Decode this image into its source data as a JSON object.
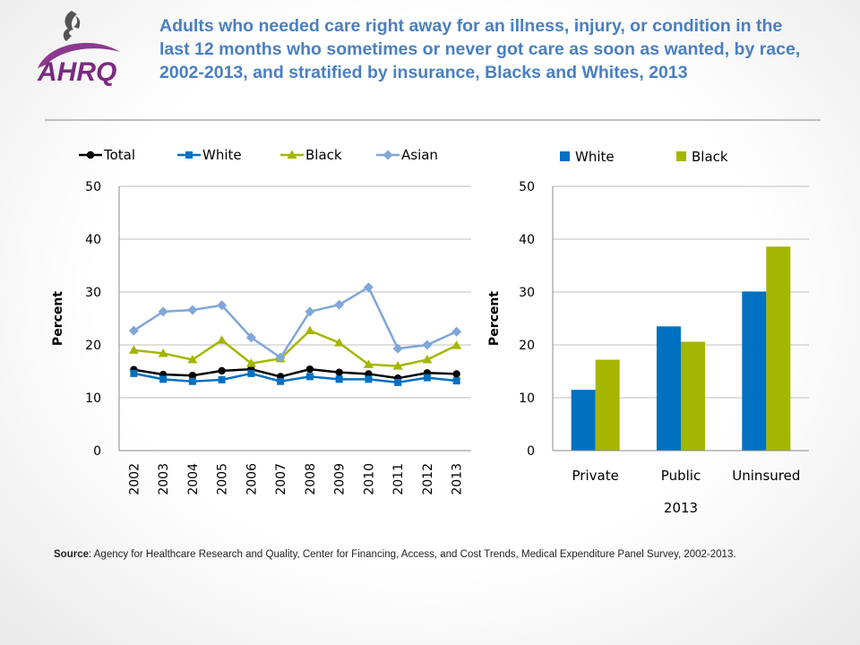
{
  "header": {
    "title": "Adults who needed care right away for an illness, injury, or condition in the last 12 months who sometimes or never got care as soon as wanted, by race, 2002-2013, and stratified by insurance, Blacks and Whites, 2013",
    "logo_text": "AHRQ",
    "logo_icon": "hhs-eagle-icon"
  },
  "footer": {
    "source_label": "Source",
    "source_text": ": Agency for Healthcare Research and Quality, Center for Financing, Access, and Cost Trends, Medical Expenditure Panel Survey, 2002-2013."
  },
  "colors": {
    "title": "#4a7fc1",
    "total": "#000000",
    "white": "#0070c0",
    "black": "#a5b600",
    "asian": "#7fa7d9",
    "grid": "#bfbfbf"
  },
  "chart_data": [
    {
      "type": "line",
      "ylabel": "Percent",
      "ylim": [
        0,
        50
      ],
      "yticks": [
        0,
        10,
        20,
        30,
        40,
        50
      ],
      "grid": true,
      "legend_position": "top",
      "x": [
        "2002",
        "2003",
        "2004",
        "2005",
        "2006",
        "2007",
        "2008",
        "2009",
        "2010",
        "2011",
        "2012",
        "2013"
      ],
      "series": [
        {
          "name": "Total",
          "marker": "circle",
          "values": [
            15.3,
            14.4,
            14.2,
            15.1,
            15.4,
            14.0,
            15.4,
            14.8,
            14.5,
            13.7,
            14.7,
            14.5
          ]
        },
        {
          "name": "White",
          "marker": "square",
          "values": [
            14.6,
            13.5,
            13.1,
            13.4,
            14.6,
            13.1,
            14.0,
            13.5,
            13.5,
            12.9,
            13.8,
            13.2
          ]
        },
        {
          "name": "Black",
          "marker": "triangle",
          "values": [
            19.0,
            18.4,
            17.2,
            20.9,
            16.5,
            17.4,
            22.7,
            20.4,
            16.3,
            16.0,
            17.2,
            19.9
          ]
        },
        {
          "name": "Asian",
          "marker": "diamond",
          "values": [
            22.7,
            26.3,
            26.6,
            27.5,
            21.4,
            17.6,
            26.3,
            27.6,
            30.9,
            19.3,
            20.0,
            22.5
          ]
        }
      ]
    },
    {
      "type": "bar",
      "ylabel": "Percent",
      "xlabel": "2013",
      "ylim": [
        0,
        50
      ],
      "yticks": [
        0,
        10,
        20,
        30,
        40,
        50
      ],
      "grid": true,
      "legend_position": "top",
      "categories": [
        "Private",
        "Public",
        "Uninsured"
      ],
      "series": [
        {
          "name": "White",
          "values": [
            11.5,
            23.5,
            30.1
          ]
        },
        {
          "name": "Black",
          "values": [
            17.2,
            20.6,
            38.6
          ]
        }
      ]
    }
  ]
}
